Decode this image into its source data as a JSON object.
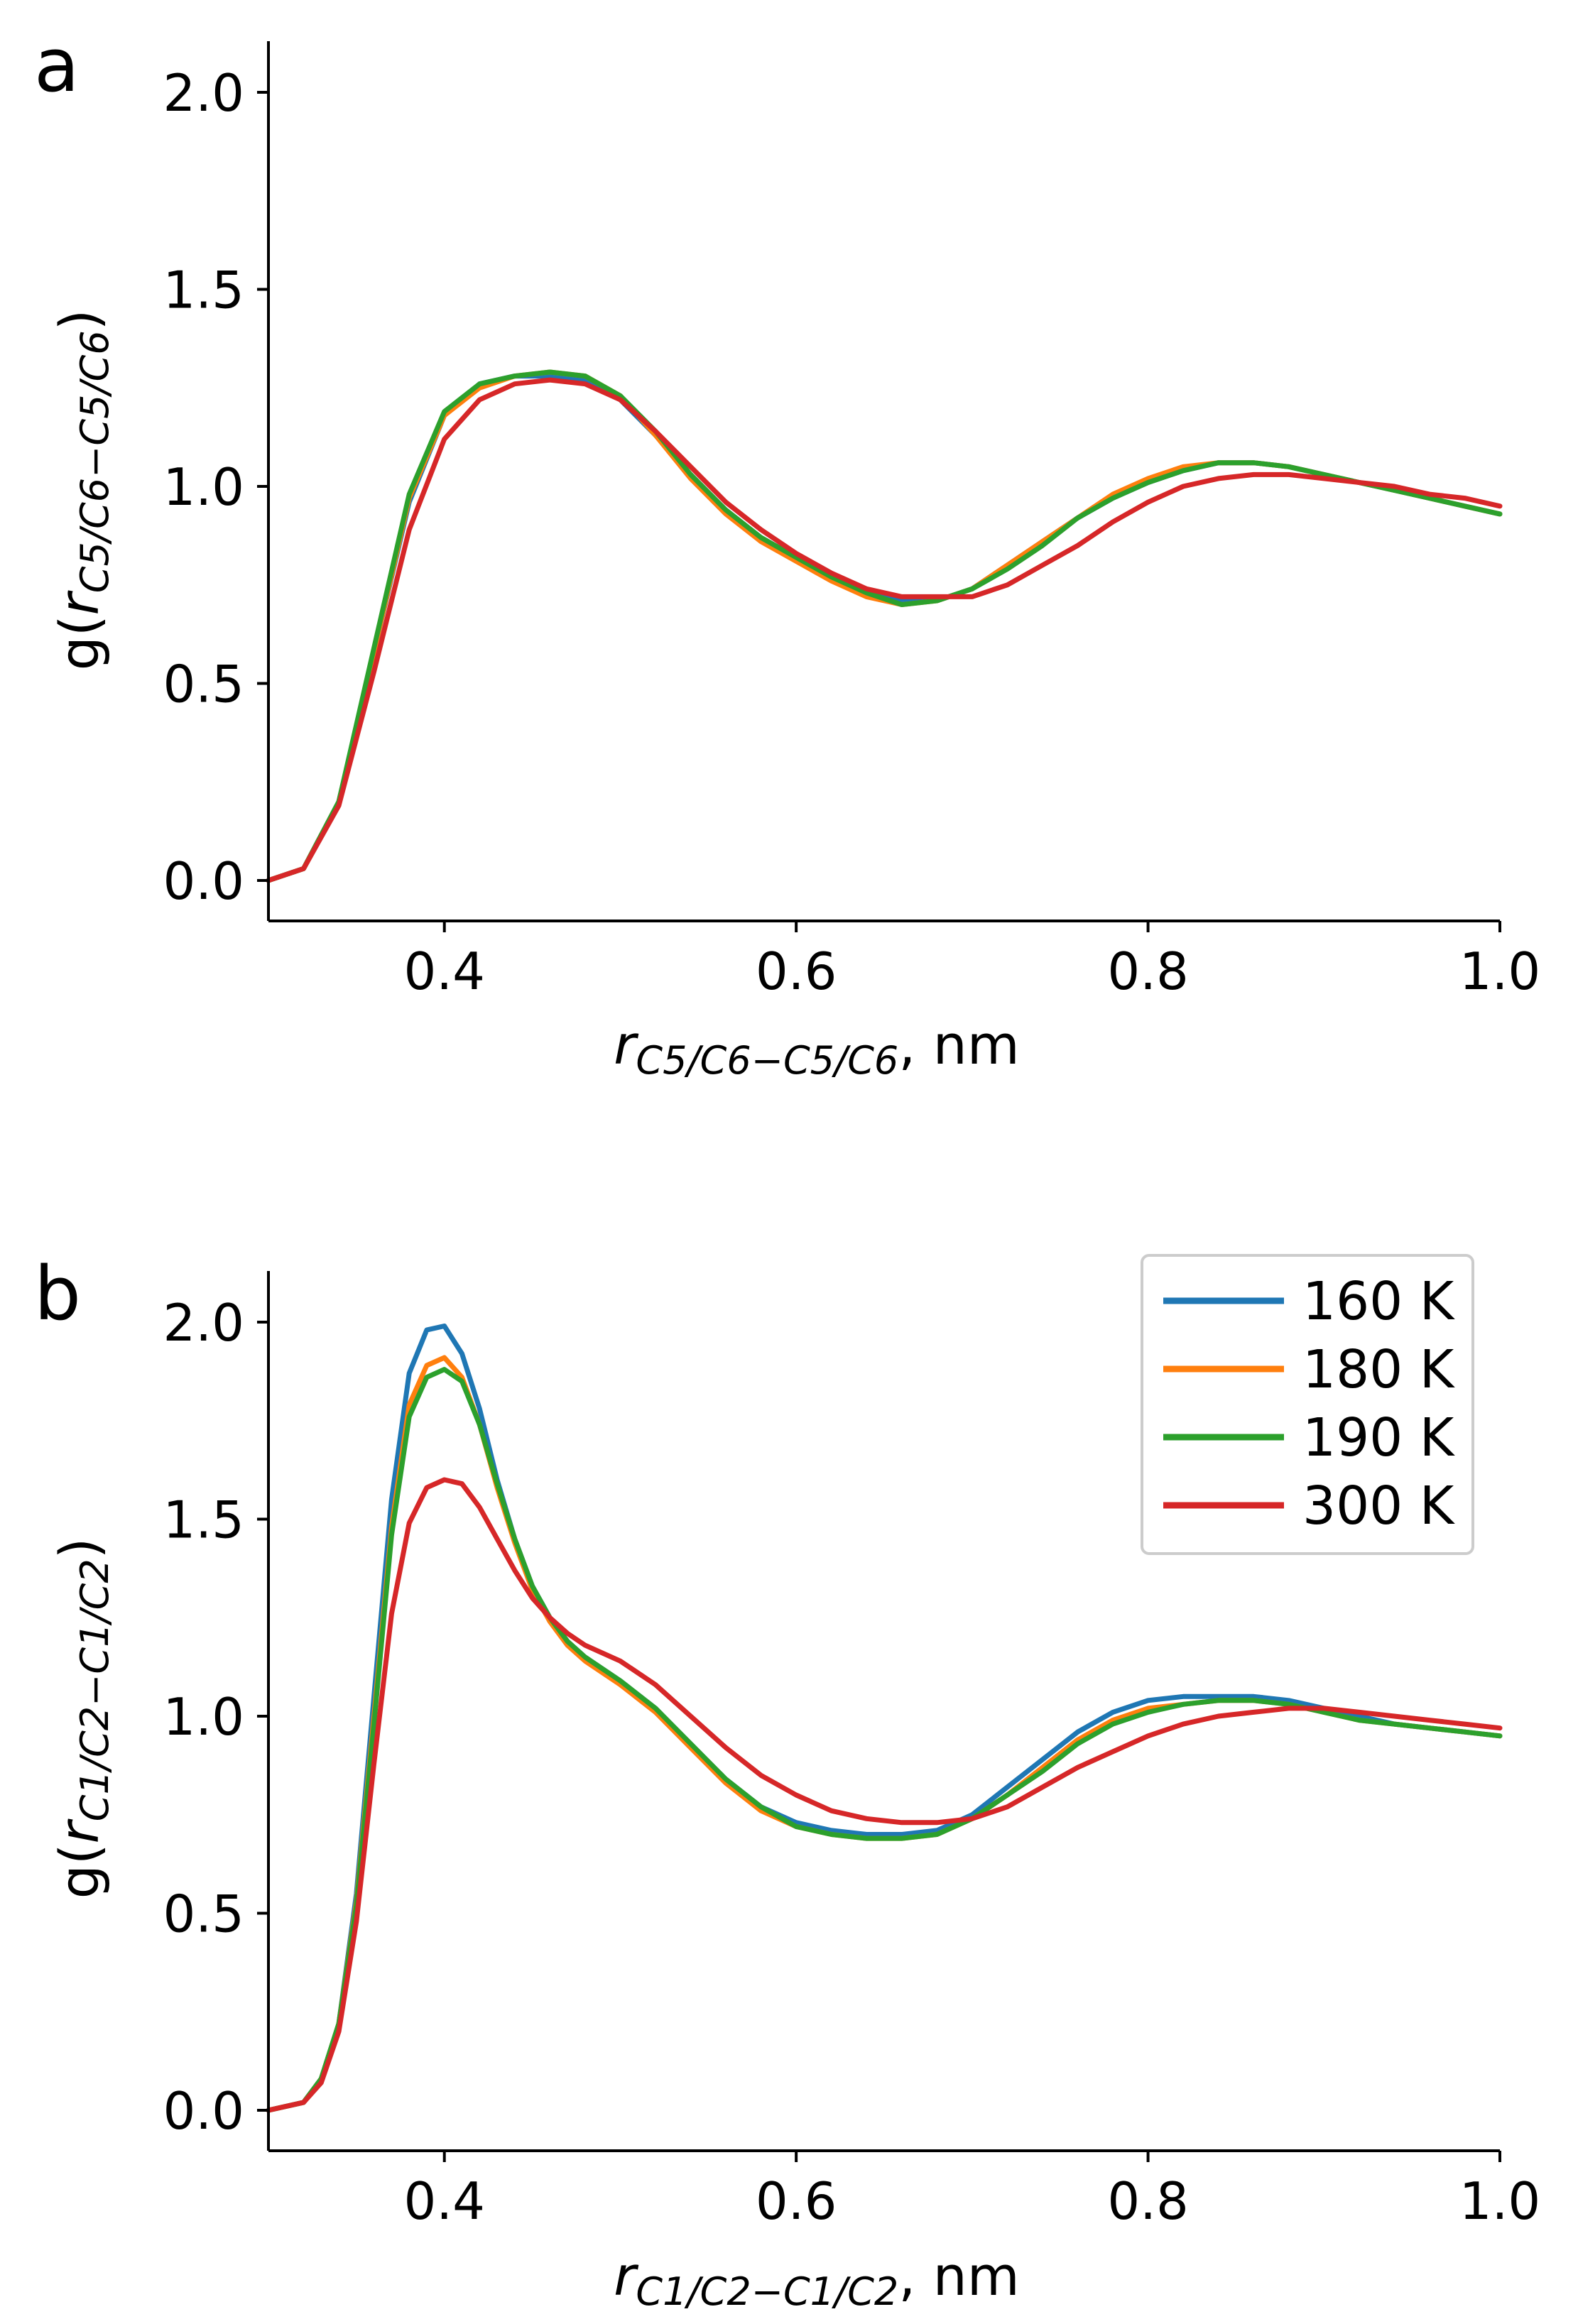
{
  "colors": {
    "160 K": "#1f77b4",
    "180 K": "#ff7f0e",
    "190 K": "#2ca02c",
    "300 K": "#d62728"
  },
  "chart_data": [
    {
      "panel": "a",
      "type": "line",
      "xlabel": {
        "base": "r",
        "sub": "C5/C6−C5/C6",
        "suffix": ", nm"
      },
      "ylabel": {
        "prefix": "g(",
        "base": "r",
        "sub": "C5/C6−C5/C6",
        "suffix": ")"
      },
      "xlim": [
        0.3,
        1.0
      ],
      "ylim": [
        -0.1,
        2.13
      ],
      "xticks": [
        0.4,
        0.6,
        0.8,
        1.0
      ],
      "xtick_labels": [
        "0.4",
        "0.6",
        "0.8",
        "1.0"
      ],
      "yticks": [
        0.0,
        0.5,
        1.0,
        1.5,
        2.0
      ],
      "ytick_labels": [
        "0.0",
        "0.5",
        "1.0",
        "1.5",
        "2.0"
      ],
      "legend": null,
      "series": [
        {
          "name": "160 K",
          "x": [
            0.3,
            0.32,
            0.34,
            0.36,
            0.38,
            0.4,
            0.42,
            0.44,
            0.46,
            0.48,
            0.5,
            0.52,
            0.54,
            0.56,
            0.58,
            0.6,
            0.62,
            0.64,
            0.66,
            0.68,
            0.7,
            0.72,
            0.74,
            0.76,
            0.78,
            0.8,
            0.82,
            0.84,
            0.86,
            0.88,
            0.9,
            0.92,
            0.94,
            0.96,
            0.98,
            1.0
          ],
          "y": [
            0.0,
            0.03,
            0.2,
            0.58,
            0.96,
            1.18,
            1.26,
            1.28,
            1.28,
            1.27,
            1.22,
            1.13,
            1.03,
            0.94,
            0.87,
            0.82,
            0.77,
            0.73,
            0.71,
            0.71,
            0.74,
            0.8,
            0.86,
            0.92,
            0.97,
            1.01,
            1.04,
            1.06,
            1.06,
            1.05,
            1.03,
            1.01,
            0.99,
            0.97,
            0.95,
            0.93
          ]
        },
        {
          "name": "180 K",
          "x": [
            0.3,
            0.32,
            0.34,
            0.36,
            0.38,
            0.4,
            0.42,
            0.44,
            0.46,
            0.48,
            0.5,
            0.52,
            0.54,
            0.56,
            0.58,
            0.6,
            0.62,
            0.64,
            0.66,
            0.68,
            0.7,
            0.72,
            0.74,
            0.76,
            0.78,
            0.8,
            0.82,
            0.84,
            0.86,
            0.88,
            0.9,
            0.92,
            0.94,
            0.96,
            0.98,
            1.0
          ],
          "y": [
            0.0,
            0.03,
            0.2,
            0.58,
            0.97,
            1.18,
            1.25,
            1.28,
            1.29,
            1.28,
            1.23,
            1.13,
            1.02,
            0.93,
            0.86,
            0.81,
            0.76,
            0.72,
            0.7,
            0.71,
            0.74,
            0.8,
            0.86,
            0.92,
            0.98,
            1.02,
            1.05,
            1.06,
            1.06,
            1.05,
            1.03,
            1.01,
            0.99,
            0.97,
            0.95,
            0.93
          ]
        },
        {
          "name": "190 K",
          "x": [
            0.3,
            0.32,
            0.34,
            0.36,
            0.38,
            0.4,
            0.42,
            0.44,
            0.46,
            0.48,
            0.5,
            0.52,
            0.54,
            0.56,
            0.58,
            0.6,
            0.62,
            0.64,
            0.66,
            0.68,
            0.7,
            0.72,
            0.74,
            0.76,
            0.78,
            0.8,
            0.82,
            0.84,
            0.86,
            0.88,
            0.9,
            0.92,
            0.94,
            0.96,
            0.98,
            1.0
          ],
          "y": [
            0.0,
            0.03,
            0.2,
            0.59,
            0.98,
            1.19,
            1.26,
            1.28,
            1.29,
            1.28,
            1.23,
            1.14,
            1.03,
            0.94,
            0.87,
            0.82,
            0.77,
            0.73,
            0.7,
            0.71,
            0.74,
            0.79,
            0.85,
            0.92,
            0.97,
            1.01,
            1.04,
            1.06,
            1.06,
            1.05,
            1.03,
            1.01,
            0.99,
            0.97,
            0.95,
            0.93
          ]
        },
        {
          "name": "300 K",
          "x": [
            0.3,
            0.32,
            0.34,
            0.36,
            0.38,
            0.4,
            0.42,
            0.44,
            0.46,
            0.48,
            0.5,
            0.52,
            0.54,
            0.56,
            0.58,
            0.6,
            0.62,
            0.64,
            0.66,
            0.68,
            0.7,
            0.72,
            0.74,
            0.76,
            0.78,
            0.8,
            0.82,
            0.84,
            0.86,
            0.88,
            0.9,
            0.92,
            0.94,
            0.96,
            0.98,
            1.0
          ],
          "y": [
            0.0,
            0.03,
            0.19,
            0.53,
            0.89,
            1.12,
            1.22,
            1.26,
            1.27,
            1.26,
            1.22,
            1.14,
            1.05,
            0.96,
            0.89,
            0.83,
            0.78,
            0.74,
            0.72,
            0.72,
            0.72,
            0.75,
            0.8,
            0.85,
            0.91,
            0.96,
            1.0,
            1.02,
            1.03,
            1.03,
            1.02,
            1.01,
            1.0,
            0.98,
            0.97,
            0.95
          ]
        }
      ]
    },
    {
      "panel": "b",
      "type": "line",
      "xlabel": {
        "base": "r",
        "sub": "C1/C2−C1/C2",
        "suffix": ", nm"
      },
      "ylabel": {
        "prefix": "g(",
        "base": "r",
        "sub": "C1/C2−C1/C2",
        "suffix": ")"
      },
      "xlim": [
        0.3,
        1.0
      ],
      "ylim": [
        -0.1,
        2.13
      ],
      "xticks": [
        0.4,
        0.6,
        0.8,
        1.0
      ],
      "xtick_labels": [
        "0.4",
        "0.6",
        "0.8",
        "1.0"
      ],
      "yticks": [
        0.0,
        0.5,
        1.0,
        1.5,
        2.0
      ],
      "ytick_labels": [
        "0.0",
        "0.5",
        "1.0",
        "1.5",
        "2.0"
      ],
      "legend": {
        "position": "top-right",
        "entries": [
          "160 K",
          "180 K",
          "190 K",
          "300 K"
        ]
      },
      "series": [
        {
          "name": "160 K",
          "x": [
            0.3,
            0.32,
            0.33,
            0.34,
            0.35,
            0.36,
            0.37,
            0.38,
            0.39,
            0.4,
            0.41,
            0.42,
            0.43,
            0.44,
            0.45,
            0.46,
            0.47,
            0.48,
            0.5,
            0.52,
            0.54,
            0.56,
            0.58,
            0.6,
            0.62,
            0.64,
            0.66,
            0.68,
            0.7,
            0.72,
            0.74,
            0.76,
            0.78,
            0.8,
            0.82,
            0.84,
            0.86,
            0.88,
            0.9,
            0.92,
            0.94,
            0.96,
            0.98,
            1.0
          ],
          "y": [
            0.0,
            0.02,
            0.08,
            0.22,
            0.55,
            1.05,
            1.55,
            1.87,
            1.98,
            1.99,
            1.92,
            1.78,
            1.6,
            1.45,
            1.33,
            1.25,
            1.19,
            1.15,
            1.09,
            1.02,
            0.93,
            0.84,
            0.77,
            0.73,
            0.71,
            0.7,
            0.7,
            0.71,
            0.75,
            0.82,
            0.89,
            0.96,
            1.01,
            1.04,
            1.05,
            1.05,
            1.05,
            1.04,
            1.02,
            1.0,
            0.98,
            0.97,
            0.96,
            0.95
          ]
        },
        {
          "name": "180 K",
          "x": [
            0.3,
            0.32,
            0.33,
            0.34,
            0.35,
            0.36,
            0.37,
            0.38,
            0.39,
            0.4,
            0.41,
            0.42,
            0.43,
            0.44,
            0.45,
            0.46,
            0.47,
            0.48,
            0.5,
            0.52,
            0.54,
            0.56,
            0.58,
            0.6,
            0.62,
            0.64,
            0.66,
            0.68,
            0.7,
            0.72,
            0.74,
            0.76,
            0.78,
            0.8,
            0.82,
            0.84,
            0.86,
            0.88,
            0.9,
            0.92,
            0.94,
            0.96,
            0.98,
            1.0
          ],
          "y": [
            0.0,
            0.02,
            0.08,
            0.22,
            0.53,
            1.0,
            1.48,
            1.79,
            1.89,
            1.91,
            1.86,
            1.74,
            1.58,
            1.44,
            1.32,
            1.24,
            1.18,
            1.14,
            1.08,
            1.01,
            0.92,
            0.83,
            0.76,
            0.72,
            0.7,
            0.69,
            0.69,
            0.7,
            0.74,
            0.8,
            0.87,
            0.94,
            0.99,
            1.02,
            1.03,
            1.04,
            1.04,
            1.03,
            1.01,
            0.99,
            0.98,
            0.97,
            0.96,
            0.95
          ]
        },
        {
          "name": "190 K",
          "x": [
            0.3,
            0.32,
            0.33,
            0.34,
            0.35,
            0.36,
            0.37,
            0.38,
            0.39,
            0.4,
            0.41,
            0.42,
            0.43,
            0.44,
            0.45,
            0.46,
            0.47,
            0.48,
            0.5,
            0.52,
            0.54,
            0.56,
            0.58,
            0.6,
            0.62,
            0.64,
            0.66,
            0.68,
            0.7,
            0.72,
            0.74,
            0.76,
            0.78,
            0.8,
            0.82,
            0.84,
            0.86,
            0.88,
            0.9,
            0.92,
            0.94,
            0.96,
            0.98,
            1.0
          ],
          "y": [
            0.0,
            0.02,
            0.08,
            0.22,
            0.52,
            0.98,
            1.46,
            1.76,
            1.86,
            1.88,
            1.85,
            1.74,
            1.59,
            1.45,
            1.33,
            1.25,
            1.19,
            1.15,
            1.09,
            1.02,
            0.93,
            0.84,
            0.77,
            0.72,
            0.7,
            0.69,
            0.69,
            0.7,
            0.74,
            0.8,
            0.86,
            0.93,
            0.98,
            1.01,
            1.03,
            1.04,
            1.04,
            1.03,
            1.01,
            0.99,
            0.98,
            0.97,
            0.96,
            0.95
          ]
        },
        {
          "name": "300 K",
          "x": [
            0.3,
            0.32,
            0.33,
            0.34,
            0.35,
            0.36,
            0.37,
            0.38,
            0.39,
            0.4,
            0.41,
            0.42,
            0.43,
            0.44,
            0.45,
            0.46,
            0.47,
            0.48,
            0.5,
            0.52,
            0.54,
            0.56,
            0.58,
            0.6,
            0.62,
            0.64,
            0.66,
            0.68,
            0.7,
            0.72,
            0.74,
            0.76,
            0.78,
            0.8,
            0.82,
            0.84,
            0.86,
            0.88,
            0.9,
            0.92,
            0.94,
            0.96,
            0.98,
            1.0
          ],
          "y": [
            0.0,
            0.02,
            0.07,
            0.2,
            0.48,
            0.88,
            1.26,
            1.49,
            1.58,
            1.6,
            1.59,
            1.53,
            1.45,
            1.37,
            1.3,
            1.25,
            1.21,
            1.18,
            1.14,
            1.08,
            1.0,
            0.92,
            0.85,
            0.8,
            0.76,
            0.74,
            0.73,
            0.73,
            0.74,
            0.77,
            0.82,
            0.87,
            0.91,
            0.95,
            0.98,
            1.0,
            1.01,
            1.02,
            1.02,
            1.01,
            1.0,
            0.99,
            0.98,
            0.97
          ]
        }
      ]
    }
  ]
}
